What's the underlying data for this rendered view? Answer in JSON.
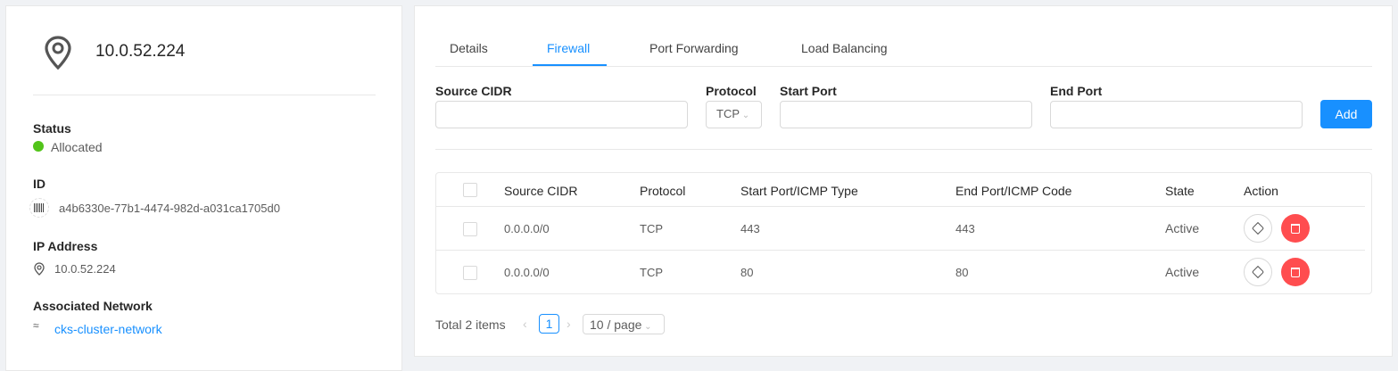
{
  "header": {
    "title": "10.0.52.224",
    "icon": "environment-icon"
  },
  "details": [
    {
      "label": "Status",
      "value": "Allocated",
      "status_color": "#52c41a"
    },
    {
      "label": "ID",
      "value": "a4b6330e-77b1-4474-982d-a031ca1705d0",
      "icon": "barcode-icon"
    },
    {
      "label": "IP Address",
      "value": "10.0.52.224",
      "icon": "environment-icon"
    },
    {
      "label": "Associated Network",
      "value": "cks-cluster-network",
      "icon": "wifi-icon"
    }
  ],
  "tabs": [
    {
      "label": "Details"
    },
    {
      "label": "Firewall",
      "active": true
    },
    {
      "label": "Port Forwarding"
    },
    {
      "label": "Load Balancing"
    }
  ],
  "form": {
    "source_cidr_label": "Source CIDR",
    "source_cidr_value": "",
    "protocol_label": "Protocol",
    "protocol_value": "TCP",
    "start_port_label": "Start Port",
    "start_port_value": "",
    "end_port_label": "End Port",
    "end_port_value": "",
    "add_label": "Add"
  },
  "table": {
    "columns": [
      "Source CIDR",
      "Protocol",
      "Start Port/ICMP Type",
      "End Port/ICMP Code",
      "State",
      "Action"
    ],
    "rows": [
      {
        "source": "0.0.0.0/0",
        "protocol": "TCP",
        "start": "443",
        "end": "443",
        "state": "Active"
      },
      {
        "source": "0.0.0.0/0",
        "protocol": "TCP",
        "start": "80",
        "end": "80",
        "state": "Active"
      }
    ]
  },
  "pagination": {
    "total": "Total 2 items",
    "current": "1",
    "page_size": "10 / page"
  },
  "colors": {
    "primary": "#1890ff",
    "danger": "#ff4d4f"
  }
}
